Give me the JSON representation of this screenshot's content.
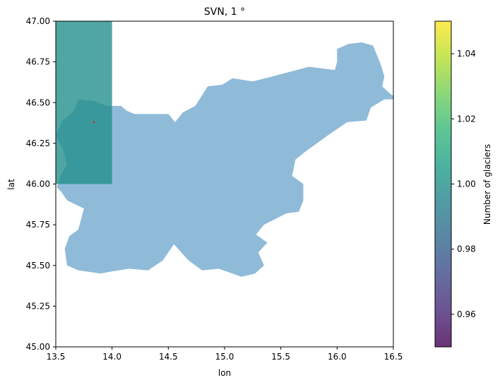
{
  "chart_data": {
    "type": "heatmap",
    "title": "SVN, 1 °",
    "xlabel": "lon",
    "ylabel": "lat",
    "xlim": [
      13.5,
      16.5
    ],
    "ylim": [
      45.0,
      47.0
    ],
    "x_ticks": [
      "13.5",
      "14.0",
      "14.5",
      "15.0",
      "15.5",
      "16.0",
      "16.5"
    ],
    "y_ticks": [
      "45.00",
      "45.25",
      "45.50",
      "45.75",
      "46.00",
      "46.25",
      "46.50",
      "46.75",
      "47.00"
    ],
    "country_outline": [
      [
        13.51,
        45.98
      ],
      [
        13.54,
        46.05
      ],
      [
        13.6,
        46.12
      ],
      [
        13.57,
        46.2
      ],
      [
        13.5,
        46.3
      ],
      [
        13.56,
        46.39
      ],
      [
        13.66,
        46.45
      ],
      [
        13.7,
        46.52
      ],
      [
        13.84,
        46.51
      ],
      [
        13.95,
        46.48
      ],
      [
        14.08,
        46.48
      ],
      [
        14.13,
        46.45
      ],
      [
        14.2,
        46.43
      ],
      [
        14.42,
        46.43
      ],
      [
        14.5,
        46.43
      ],
      [
        14.56,
        46.38
      ],
      [
        14.63,
        46.44
      ],
      [
        14.74,
        46.48
      ],
      [
        14.85,
        46.6
      ],
      [
        14.98,
        46.61
      ],
      [
        15.07,
        46.65
      ],
      [
        15.25,
        46.63
      ],
      [
        15.42,
        46.66
      ],
      [
        15.64,
        46.7
      ],
      [
        15.75,
        46.72
      ],
      [
        15.98,
        46.7
      ],
      [
        16.0,
        46.75
      ],
      [
        16.0,
        46.83
      ],
      [
        16.1,
        46.86
      ],
      [
        16.22,
        46.87
      ],
      [
        16.32,
        46.85
      ],
      [
        16.39,
        46.73
      ],
      [
        16.42,
        46.66
      ],
      [
        16.4,
        46.6
      ],
      [
        16.48,
        46.55
      ],
      [
        16.55,
        46.52
      ],
      [
        16.42,
        46.52
      ],
      [
        16.3,
        46.47
      ],
      [
        16.26,
        46.39
      ],
      [
        16.09,
        46.38
      ],
      [
        15.92,
        46.3
      ],
      [
        15.82,
        46.25
      ],
      [
        15.72,
        46.2
      ],
      [
        15.63,
        46.15
      ],
      [
        15.6,
        46.05
      ],
      [
        15.7,
        46.0
      ],
      [
        15.7,
        45.9
      ],
      [
        15.66,
        45.83
      ],
      [
        15.55,
        45.82
      ],
      [
        15.35,
        45.75
      ],
      [
        15.28,
        45.69
      ],
      [
        15.38,
        45.64
      ],
      [
        15.3,
        45.58
      ],
      [
        15.35,
        45.5
      ],
      [
        15.27,
        45.45
      ],
      [
        15.15,
        45.43
      ],
      [
        14.95,
        45.48
      ],
      [
        14.8,
        45.47
      ],
      [
        14.68,
        45.53
      ],
      [
        14.55,
        45.63
      ],
      [
        14.45,
        45.53
      ],
      [
        14.32,
        45.47
      ],
      [
        14.15,
        45.48
      ],
      [
        13.97,
        45.46
      ],
      [
        13.9,
        45.45
      ],
      [
        13.7,
        45.47
      ],
      [
        13.6,
        45.5
      ],
      [
        13.58,
        45.6
      ],
      [
        13.62,
        45.68
      ],
      [
        13.7,
        45.72
      ],
      [
        13.75,
        45.85
      ],
      [
        13.6,
        45.9
      ],
      [
        13.55,
        45.95
      ]
    ],
    "cells": [
      {
        "lon_range": [
          13.5,
          14.0
        ],
        "lat_range": [
          46.0,
          47.0
        ],
        "value": 1.0
      }
    ],
    "glacier_points": [
      {
        "lon": 13.84,
        "lat": 46.38
      }
    ],
    "colorbar": {
      "label": "Number of glaciers",
      "range": [
        0.95,
        1.05
      ],
      "ticks": [
        "0.96",
        "0.98",
        "1.00",
        "1.02",
        "1.04"
      ],
      "colormap": [
        "#440154",
        "#482878",
        "#3e4989",
        "#31688e",
        "#26828e",
        "#1f9e89",
        "#35b779",
        "#6ece58",
        "#b5de2b",
        "#fde725"
      ],
      "alpha": 0.8
    },
    "colors": {
      "country_fill": "#1f77b4",
      "country_alpha": 0.5,
      "point_color": "#d62728"
    },
    "grid": false
  }
}
